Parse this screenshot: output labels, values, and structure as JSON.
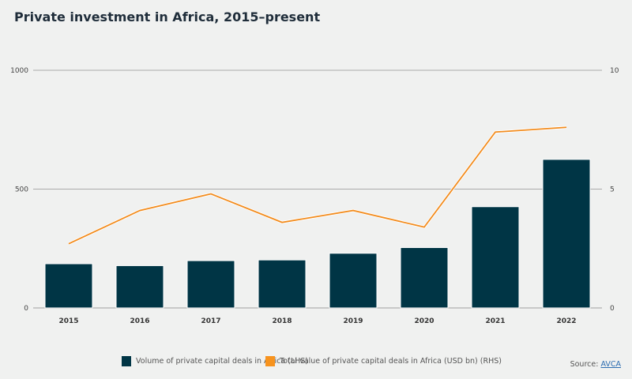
{
  "chart_data": {
    "type": "bar+line",
    "title": "Private investment in Africa, 2015–present",
    "categories": [
      "2015",
      "2016",
      "2017",
      "2018",
      "2019",
      "2020",
      "2021",
      "2022"
    ],
    "series": [
      {
        "name": "Volume of private capital deals in Africa (LHS)",
        "type": "bar",
        "axis": "left",
        "color": "#003545",
        "values": [
          186,
          178,
          199,
          202,
          230,
          254,
          426,
          625
        ]
      },
      {
        "name": "Total value of private capital deals in Africa (USD bn) (RHS)",
        "type": "line",
        "axis": "right",
        "color": "#f28c1e",
        "values": [
          2.7,
          4.1,
          4.8,
          3.6,
          4.1,
          3.4,
          7.4,
          7.6
        ]
      }
    ],
    "y_left": {
      "ylim": [
        0,
        1000
      ],
      "ticks": [
        "0",
        "500",
        "1000"
      ],
      "tick_values": [
        0,
        500,
        1000
      ]
    },
    "y_right": {
      "ylim": [
        0,
        10
      ],
      "ticks": [
        "0",
        "5",
        "10"
      ],
      "tick_values": [
        0,
        5,
        10
      ]
    },
    "grid": true,
    "legend_placement": "bottom"
  },
  "source": {
    "label": "Source:",
    "link": "AVCA"
  }
}
